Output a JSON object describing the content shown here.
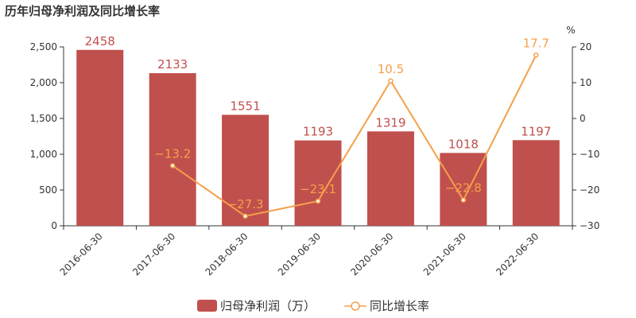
{
  "chart_data": {
    "type": "bar",
    "title": "历年归母净利润及同比增长率",
    "categories": [
      "2016-06-30",
      "2017-06-30",
      "2018-06-30",
      "2019-06-30",
      "2020-06-30",
      "2021-06-30",
      "2022-06-30"
    ],
    "series": [
      {
        "name": "归母净利润（万）",
        "type": "bar",
        "axis": "left",
        "color": "#c0504d",
        "values": [
          2458,
          2133,
          1551,
          1193,
          1319,
          1018,
          1197
        ],
        "labels": [
          "2458",
          "2133",
          "1551",
          "1193",
          "1319",
          "1018",
          "1197"
        ]
      },
      {
        "name": "同比增长率",
        "type": "line",
        "axis": "right",
        "color": "#f5a04a",
        "values": [
          null,
          -13.2,
          -27.3,
          -23.1,
          10.5,
          -22.8,
          17.7
        ],
        "labels": [
          "",
          "−13.2",
          "−27.3",
          "−23.1",
          "10.5",
          "−22.8",
          "17.7"
        ]
      }
    ],
    "y_left": {
      "range": [
        0,
        2500
      ],
      "ticks": [
        0,
        500,
        1000,
        1500,
        2000,
        2500
      ],
      "tick_labels": [
        "0",
        "500",
        "1,000",
        "1,500",
        "2,000",
        "2,500"
      ]
    },
    "y_right": {
      "unit": "%",
      "range": [
        -30,
        20
      ],
      "ticks": [
        -30,
        -20,
        -10,
        0,
        10,
        20
      ],
      "tick_labels": [
        "−30",
        "−20",
        "−10",
        "0",
        "10",
        "20"
      ]
    },
    "grid": false,
    "legend": "bottom-center"
  }
}
